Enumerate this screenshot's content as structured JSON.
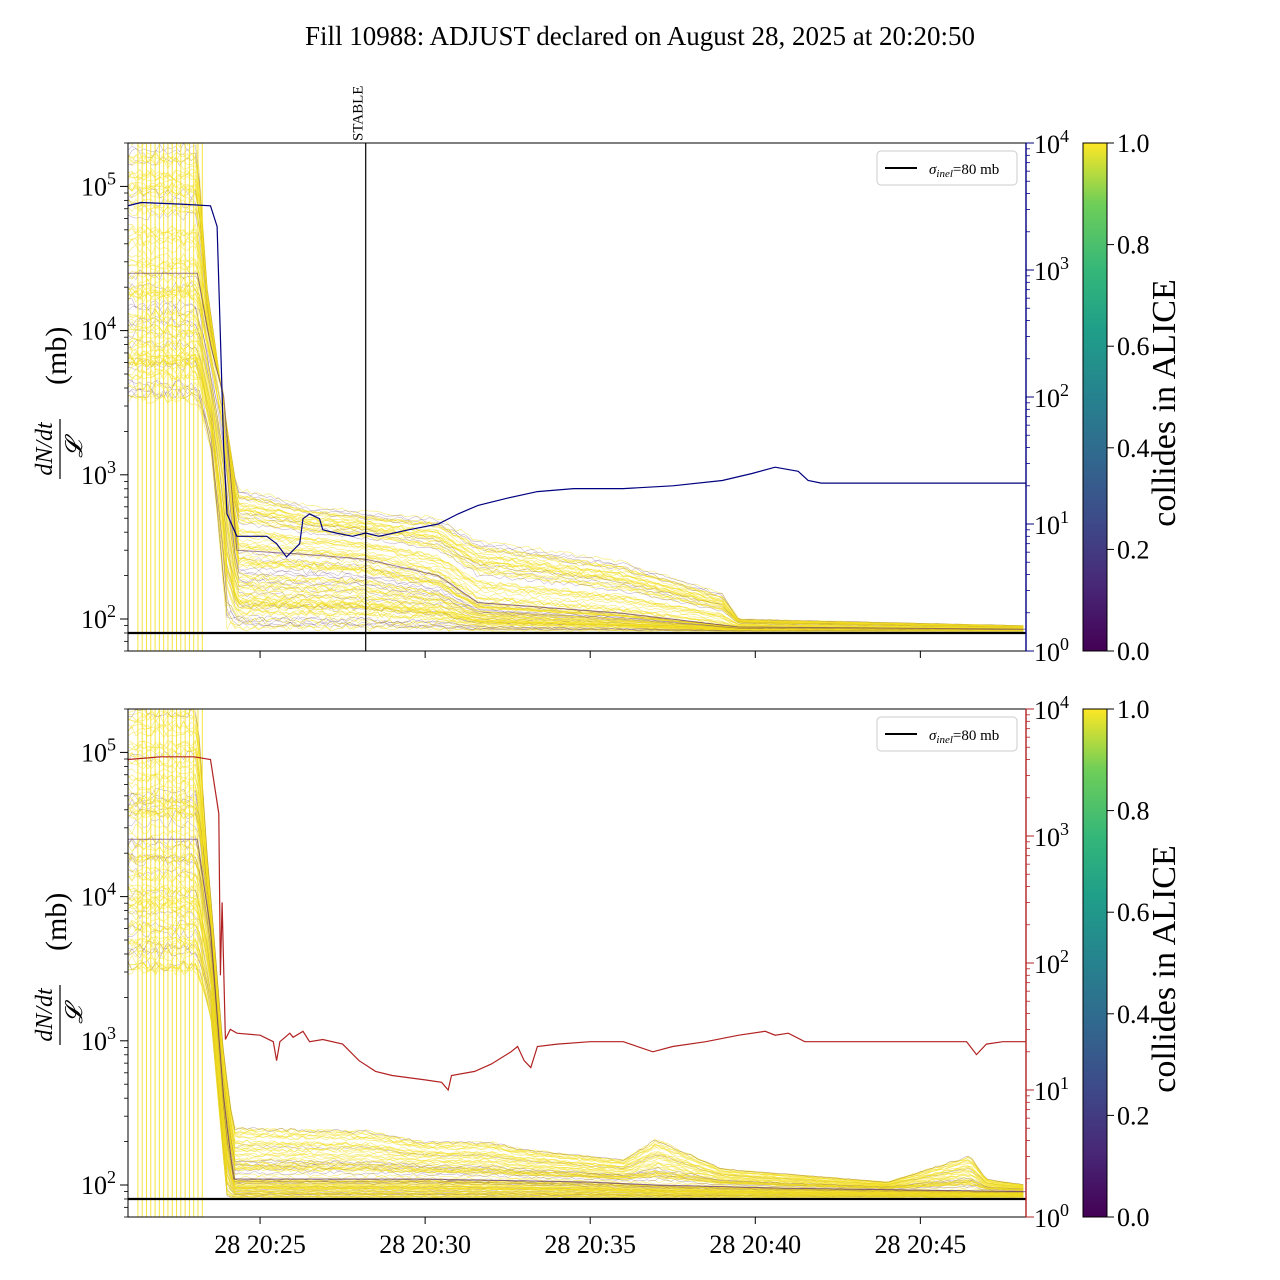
{
  "title": "Fill 10988: ADJUST declared on August 28, 2025 at 20:20:50",
  "colors": {
    "bundle_high": "#f3df1c",
    "bundle_low": "#5b2a6a",
    "right_axis_top": "#000080",
    "right_axis_bottom": "#b22222",
    "reference": "#000000"
  },
  "chart_data": [
    {
      "type": "line",
      "panel": "top",
      "ylabel": "dN/dt / 𝓛 (mb)",
      "ylabel_num": "dN/dt",
      "ylabel_den": "𝓛",
      "ylabel_unit": "(mb)",
      "yscale": "log",
      "ylim": [
        60,
        200000
      ],
      "yticks": [
        {
          "base": "10",
          "exp": "2",
          "v": 100
        },
        {
          "base": "10",
          "exp": "3",
          "v": 1000
        },
        {
          "base": "10",
          "exp": "4",
          "v": 10000
        },
        {
          "base": "10",
          "exp": "5",
          "v": 100000
        }
      ],
      "xlim": [
        0,
        27.2
      ],
      "x_unit": "minutes after 28 20:21",
      "annotation": {
        "label": "STABLE",
        "x": 7.2
      },
      "legend": {
        "label_sigma": "σ",
        "label_sub": "inel",
        "label_rest": "=80 mb",
        "placement": "upper right"
      },
      "reference_value": 80,
      "bundle": {
        "colormap": "viridis",
        "colorbar_label": "collides in ALICE",
        "colorbar_ticks": [
          "0.0",
          "0.2",
          "0.4",
          "0.6",
          "0.8",
          "1.0"
        ],
        "upper_envelope": [
          [
            0,
            200000
          ],
          [
            2.1,
            200000
          ],
          [
            2.4,
            20000
          ],
          [
            2.9,
            3000
          ],
          [
            3.3,
            800
          ],
          [
            4.5,
            700
          ],
          [
            5.5,
            600
          ],
          [
            9.4,
            500
          ],
          [
            10.6,
            350
          ],
          [
            14.9,
            250
          ],
          [
            18.0,
            150
          ],
          [
            18.5,
            100
          ],
          [
            27.2,
            90
          ]
        ],
        "median": [
          [
            0,
            25000
          ],
          [
            2.1,
            25000
          ],
          [
            2.5,
            8000
          ],
          [
            2.9,
            3500
          ],
          [
            3.3,
            300
          ],
          [
            5.4,
            280
          ],
          [
            7.2,
            260
          ],
          [
            9.4,
            200
          ],
          [
            10.6,
            130
          ],
          [
            14.9,
            110
          ],
          [
            18.5,
            88
          ],
          [
            27.2,
            85
          ]
        ],
        "lower_envelope": [
          [
            0,
            3000
          ],
          [
            2.1,
            3000
          ],
          [
            2.5,
            1500
          ],
          [
            3.0,
            82
          ],
          [
            27.2,
            82
          ]
        ]
      },
      "right_axis": {
        "color": "#000080",
        "scale": "log",
        "ylim": [
          1,
          10000
        ],
        "ticks": [
          {
            "base": "10",
            "exp": "0",
            "v": 1
          },
          {
            "base": "10",
            "exp": "1",
            "v": 10
          },
          {
            "base": "10",
            "exp": "2",
            "v": 100
          },
          {
            "base": "10",
            "exp": "3",
            "v": 1000
          },
          {
            "base": "10",
            "exp": "4",
            "v": 10000
          }
        ],
        "series": [
          [
            0,
            3200
          ],
          [
            0.4,
            3400
          ],
          [
            1.6,
            3300
          ],
          [
            2.5,
            3200
          ],
          [
            2.7,
            2200
          ],
          [
            2.9,
            40
          ],
          [
            3.0,
            12
          ],
          [
            3.3,
            8
          ],
          [
            4.2,
            8
          ],
          [
            4.5,
            7
          ],
          [
            4.8,
            5.5
          ],
          [
            5.2,
            7
          ],
          [
            5.3,
            11
          ],
          [
            5.5,
            12
          ],
          [
            5.8,
            11
          ],
          [
            5.9,
            9
          ],
          [
            6.3,
            8.5
          ],
          [
            6.8,
            8
          ],
          [
            7.2,
            8.5
          ],
          [
            7.6,
            8
          ],
          [
            8.5,
            9
          ],
          [
            9.4,
            10
          ],
          [
            10.0,
            12
          ],
          [
            10.6,
            14
          ],
          [
            11.5,
            16
          ],
          [
            12.4,
            18
          ],
          [
            13.5,
            19
          ],
          [
            15.0,
            19
          ],
          [
            16.5,
            20
          ],
          [
            18.0,
            22
          ],
          [
            18.9,
            25
          ],
          [
            19.6,
            28
          ],
          [
            20.3,
            26
          ],
          [
            20.6,
            22
          ],
          [
            21.0,
            21
          ],
          [
            22.5,
            21
          ],
          [
            24.0,
            21
          ],
          [
            27.2,
            21
          ]
        ]
      }
    },
    {
      "type": "line",
      "panel": "bottom",
      "ylabel": "dN/dt / 𝓛 (mb)",
      "ylabel_num": "dN/dt",
      "ylabel_den": "𝓛",
      "ylabel_unit": "(mb)",
      "yscale": "log",
      "ylim": [
        60,
        200000
      ],
      "yticks": [
        {
          "base": "10",
          "exp": "2",
          "v": 100
        },
        {
          "base": "10",
          "exp": "3",
          "v": 1000
        },
        {
          "base": "10",
          "exp": "4",
          "v": 10000
        },
        {
          "base": "10",
          "exp": "5",
          "v": 100000
        }
      ],
      "xlim": [
        0,
        27.2
      ],
      "xticks": [
        {
          "v": 4,
          "label": "28 20:25"
        },
        {
          "v": 9,
          "label": "28 20:30"
        },
        {
          "v": 14,
          "label": "28 20:35"
        },
        {
          "v": 19,
          "label": "28 20:40"
        },
        {
          "v": 24,
          "label": "28 20:45"
        }
      ],
      "legend": {
        "label_sigma": "σ",
        "label_sub": "inel",
        "label_rest": "=80 mb",
        "placement": "upper right"
      },
      "reference_value": 80,
      "bundle": {
        "colormap": "viridis",
        "colorbar_label": "collides in ALICE",
        "colorbar_ticks": [
          "0.0",
          "0.2",
          "0.4",
          "0.6",
          "0.8",
          "1.0"
        ],
        "upper_envelope": [
          [
            0,
            200000
          ],
          [
            2.1,
            200000
          ],
          [
            2.4,
            20000
          ],
          [
            2.9,
            800
          ],
          [
            3.2,
            250
          ],
          [
            7.2,
            240
          ],
          [
            9.0,
            200
          ],
          [
            11.0,
            200
          ],
          [
            11.8,
            180
          ],
          [
            15.0,
            150
          ],
          [
            16.0,
            210
          ],
          [
            18.0,
            130
          ],
          [
            23.0,
            105
          ],
          [
            25.5,
            160
          ],
          [
            26.0,
            110
          ],
          [
            27.2,
            100
          ]
        ],
        "median": [
          [
            0,
            25000
          ],
          [
            2.1,
            25000
          ],
          [
            2.5,
            6000
          ],
          [
            2.9,
            400
          ],
          [
            3.2,
            110
          ],
          [
            9.0,
            110
          ],
          [
            14.0,
            105
          ],
          [
            16.0,
            100
          ],
          [
            20.0,
            95
          ],
          [
            27.2,
            90
          ]
        ],
        "lower_envelope": [
          [
            0,
            3000
          ],
          [
            2.1,
            3000
          ],
          [
            2.5,
            1500
          ],
          [
            3.0,
            82
          ],
          [
            27.2,
            82
          ]
        ]
      },
      "right_axis": {
        "color": "#b22222",
        "scale": "log",
        "ylim": [
          1,
          10000
        ],
        "ticks": [
          {
            "base": "10",
            "exp": "0",
            "v": 1
          },
          {
            "base": "10",
            "exp": "1",
            "v": 10
          },
          {
            "base": "10",
            "exp": "2",
            "v": 100
          },
          {
            "base": "10",
            "exp": "3",
            "v": 1000
          },
          {
            "base": "10",
            "exp": "4",
            "v": 10000
          }
        ],
        "series": [
          [
            0,
            4000
          ],
          [
            1.0,
            4200
          ],
          [
            2.0,
            4200
          ],
          [
            2.5,
            4000
          ],
          [
            2.75,
            1500
          ],
          [
            2.8,
            80
          ],
          [
            2.85,
            300
          ],
          [
            2.95,
            25
          ],
          [
            3.1,
            30
          ],
          [
            3.3,
            28
          ],
          [
            4.0,
            27
          ],
          [
            4.4,
            24
          ],
          [
            4.5,
            17
          ],
          [
            4.6,
            24
          ],
          [
            4.9,
            28
          ],
          [
            5.0,
            26
          ],
          [
            5.3,
            29
          ],
          [
            5.5,
            24
          ],
          [
            5.9,
            25
          ],
          [
            6.5,
            23
          ],
          [
            7.0,
            17
          ],
          [
            7.5,
            14
          ],
          [
            8.0,
            13
          ],
          [
            9.0,
            12
          ],
          [
            9.5,
            11.5
          ],
          [
            9.7,
            10
          ],
          [
            9.8,
            13
          ],
          [
            10.5,
            14
          ],
          [
            11.0,
            16
          ],
          [
            11.6,
            20
          ],
          [
            11.8,
            22
          ],
          [
            12.0,
            17
          ],
          [
            12.2,
            15
          ],
          [
            12.4,
            22
          ],
          [
            13.0,
            23
          ],
          [
            14.0,
            24
          ],
          [
            15.0,
            24
          ],
          [
            15.9,
            20
          ],
          [
            16.5,
            22
          ],
          [
            17.5,
            24
          ],
          [
            18.5,
            27
          ],
          [
            19.3,
            29
          ],
          [
            19.6,
            27
          ],
          [
            20.0,
            28
          ],
          [
            20.5,
            24
          ],
          [
            22.0,
            24
          ],
          [
            25.0,
            24
          ],
          [
            25.4,
            24
          ],
          [
            25.7,
            19
          ],
          [
            26.0,
            23
          ],
          [
            26.5,
            24
          ],
          [
            27.2,
            24
          ]
        ]
      }
    }
  ]
}
